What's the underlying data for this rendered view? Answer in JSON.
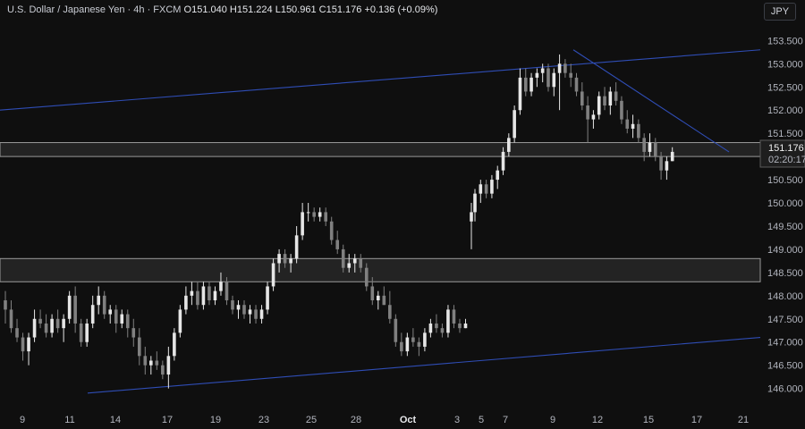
{
  "header": {
    "symbol": "U.S. Dollar / Japanese Yen",
    "interval": "4h",
    "source": "FXCM",
    "open": "O151.040",
    "high": "H151.224",
    "low": "L150.961",
    "close": "C151.176",
    "change": "+0.136 (+0.09%)"
  },
  "currency_button": "JPY",
  "price_tag": {
    "price": "151.176",
    "countdown": "02:20:17"
  },
  "colors": {
    "background": "#0f0f0f",
    "candle_up": "#e6e6e6",
    "candle_down": "#808080",
    "trendline": "#2f4db5",
    "zone_fill": "#232323",
    "zone_border": "#9a9a9a"
  },
  "chart_data": {
    "type": "candlestick",
    "y_ticks": [
      "153.500",
      "153.000",
      "152.500",
      "152.000",
      "151.500",
      "151.000",
      "150.500",
      "150.000",
      "149.500",
      "149.000",
      "148.500",
      "148.000",
      "147.500",
      "147.000",
      "146.500",
      "146.000"
    ],
    "ylim": [
      145.55,
      153.95
    ],
    "x_ticks": [
      "9",
      "11",
      "14",
      "17",
      "19",
      "23",
      "25",
      "28",
      "Oct",
      "3",
      "5",
      "7",
      "9",
      "12",
      "15",
      "17",
      "21"
    ],
    "x_tick_bold": [
      "Oct"
    ],
    "candles": [
      [
        147.9,
        148.1,
        147.4,
        147.7
      ],
      [
        147.7,
        147.9,
        147.2,
        147.3
      ],
      [
        147.3,
        147.5,
        147.0,
        147.1
      ],
      [
        147.1,
        147.2,
        146.6,
        146.8
      ],
      [
        146.8,
        147.2,
        146.5,
        147.1
      ],
      [
        147.1,
        147.7,
        147.0,
        147.5
      ],
      [
        147.5,
        147.7,
        147.3,
        147.4
      ],
      [
        147.4,
        147.6,
        147.1,
        147.2
      ],
      [
        147.2,
        147.6,
        147.1,
        147.5
      ],
      [
        147.5,
        147.7,
        147.2,
        147.3
      ],
      [
        147.3,
        147.6,
        147.0,
        147.5
      ],
      [
        147.5,
        148.1,
        147.4,
        148.0
      ],
      [
        148.0,
        148.2,
        147.2,
        147.4
      ],
      [
        147.4,
        147.5,
        146.9,
        147.0
      ],
      [
        147.0,
        147.5,
        146.9,
        147.4
      ],
      [
        147.4,
        148.0,
        147.3,
        147.8
      ],
      [
        147.8,
        148.2,
        147.6,
        148.0
      ],
      [
        148.0,
        148.1,
        147.5,
        147.6
      ],
      [
        147.6,
        147.8,
        147.4,
        147.7
      ],
      [
        147.7,
        147.8,
        147.2,
        147.4
      ],
      [
        147.4,
        147.7,
        147.3,
        147.6
      ],
      [
        147.6,
        147.7,
        147.1,
        147.3
      ],
      [
        147.3,
        147.5,
        146.9,
        147.1
      ],
      [
        147.1,
        147.3,
        146.5,
        146.7
      ],
      [
        146.7,
        146.9,
        146.3,
        146.5
      ],
      [
        146.5,
        146.7,
        146.3,
        146.6
      ],
      [
        146.6,
        146.8,
        146.4,
        146.5
      ],
      [
        146.5,
        146.6,
        146.2,
        146.3
      ],
      [
        146.3,
        146.9,
        146.0,
        146.7
      ],
      [
        146.7,
        147.3,
        146.6,
        147.2
      ],
      [
        147.2,
        147.8,
        147.1,
        147.7
      ],
      [
        147.7,
        148.2,
        147.6,
        148.0
      ],
      [
        148.0,
        148.3,
        147.8,
        148.1
      ],
      [
        148.1,
        148.3,
        147.7,
        147.8
      ],
      [
        147.8,
        148.3,
        147.7,
        148.2
      ],
      [
        148.2,
        148.3,
        147.8,
        147.9
      ],
      [
        147.9,
        148.2,
        147.8,
        148.1
      ],
      [
        148.1,
        148.5,
        148.0,
        148.3
      ],
      [
        148.3,
        148.4,
        147.8,
        147.9
      ],
      [
        147.9,
        148.0,
        147.6,
        147.7
      ],
      [
        147.7,
        147.9,
        147.5,
        147.8
      ],
      [
        147.8,
        147.9,
        147.5,
        147.6
      ],
      [
        147.6,
        147.8,
        147.4,
        147.7
      ],
      [
        147.7,
        147.8,
        147.4,
        147.5
      ],
      [
        147.5,
        147.8,
        147.4,
        147.7
      ],
      [
        147.7,
        148.3,
        147.6,
        148.2
      ],
      [
        148.2,
        148.8,
        148.1,
        148.7
      ],
      [
        148.7,
        149.0,
        148.5,
        148.9
      ],
      [
        148.9,
        149.0,
        148.6,
        148.7
      ],
      [
        148.7,
        148.9,
        148.5,
        148.8
      ],
      [
        148.8,
        149.5,
        148.7,
        149.3
      ],
      [
        149.3,
        150.0,
        149.2,
        149.8
      ],
      [
        149.8,
        150.0,
        149.6,
        149.8
      ],
      [
        149.8,
        149.9,
        149.6,
        149.7
      ],
      [
        149.7,
        149.9,
        149.6,
        149.8
      ],
      [
        149.8,
        149.9,
        149.5,
        149.6
      ],
      [
        149.6,
        149.7,
        149.1,
        149.2
      ],
      [
        149.2,
        149.4,
        148.9,
        149.0
      ],
      [
        149.0,
        149.1,
        148.5,
        148.6
      ],
      [
        148.6,
        148.9,
        148.5,
        148.7
      ],
      [
        148.7,
        148.9,
        148.5,
        148.8
      ],
      [
        148.8,
        148.9,
        148.5,
        148.6
      ],
      [
        148.6,
        148.7,
        148.1,
        148.2
      ],
      [
        148.2,
        148.4,
        147.8,
        147.9
      ],
      [
        147.9,
        148.1,
        147.7,
        148.0
      ],
      [
        148.0,
        148.2,
        147.8,
        147.8
      ],
      [
        147.8,
        148.1,
        147.4,
        147.5
      ],
      [
        147.5,
        147.6,
        146.9,
        147.0
      ],
      [
        147.0,
        147.2,
        146.7,
        146.8
      ],
      [
        146.8,
        147.2,
        146.7,
        147.1
      ],
      [
        147.1,
        147.3,
        146.9,
        147.0
      ],
      [
        147.0,
        147.1,
        146.7,
        146.9
      ],
      [
        146.9,
        147.3,
        146.8,
        147.2
      ],
      [
        147.2,
        147.5,
        147.1,
        147.4
      ],
      [
        147.4,
        147.6,
        147.2,
        147.3
      ],
      [
        147.3,
        147.4,
        147.1,
        147.2
      ],
      [
        147.2,
        147.8,
        147.1,
        147.7
      ],
      [
        147.7,
        147.8,
        147.3,
        147.4
      ],
      [
        147.4,
        147.5,
        147.2,
        147.3
      ],
      [
        147.3,
        147.5,
        147.3,
        147.4
      ],
      [
        149.6,
        150.0,
        149.0,
        149.8
      ],
      [
        149.8,
        150.3,
        149.6,
        150.2
      ],
      [
        150.2,
        150.5,
        150.0,
        150.4
      ],
      [
        150.4,
        150.5,
        150.1,
        150.2
      ],
      [
        150.2,
        150.6,
        150.1,
        150.5
      ],
      [
        150.5,
        150.8,
        150.3,
        150.7
      ],
      [
        150.7,
        151.2,
        150.6,
        151.1
      ],
      [
        151.1,
        151.5,
        151.0,
        151.4
      ],
      [
        151.4,
        152.1,
        151.3,
        152.0
      ],
      [
        152.0,
        152.9,
        151.9,
        152.7
      ],
      [
        152.7,
        152.9,
        152.3,
        152.4
      ],
      [
        152.4,
        152.8,
        152.3,
        152.7
      ],
      [
        152.7,
        152.9,
        152.5,
        152.8
      ],
      [
        152.8,
        153.0,
        152.6,
        152.9
      ],
      [
        152.9,
        153.0,
        152.4,
        152.5
      ],
      [
        152.5,
        152.9,
        152.3,
        152.8
      ],
      [
        152.8,
        153.2,
        152.0,
        153.0
      ],
      [
        153.0,
        153.1,
        152.7,
        152.8
      ],
      [
        152.8,
        153.0,
        152.5,
        152.7
      ],
      [
        152.7,
        152.8,
        152.3,
        152.4
      ],
      [
        152.4,
        152.6,
        152.0,
        152.1
      ],
      [
        152.1,
        152.3,
        151.3,
        151.8
      ],
      [
        151.8,
        152.0,
        151.6,
        151.9
      ],
      [
        151.9,
        152.4,
        151.8,
        152.3
      ],
      [
        152.3,
        152.5,
        152.0,
        152.1
      ],
      [
        152.1,
        152.5,
        151.9,
        152.4
      ],
      [
        152.4,
        152.6,
        152.1,
        152.2
      ],
      [
        152.2,
        152.3,
        151.7,
        151.8
      ],
      [
        151.8,
        152.0,
        151.5,
        151.6
      ],
      [
        151.6,
        151.9,
        151.4,
        151.7
      ],
      [
        151.7,
        151.8,
        151.3,
        151.4
      ],
      [
        151.4,
        151.5,
        150.9,
        151.1
      ],
      [
        151.1,
        151.5,
        151.0,
        151.3
      ],
      [
        151.3,
        151.4,
        150.9,
        151.0
      ],
      [
        151.0,
        151.1,
        150.5,
        150.7
      ],
      [
        150.7,
        151.0,
        150.5,
        150.9
      ],
      [
        150.9,
        151.2,
        150.9,
        151.1
      ]
    ],
    "annotations": [
      {
        "type": "trendline",
        "from": [
          "(left edge)",
          152.0
        ],
        "to": [
          "(right edge)",
          153.3
        ]
      },
      {
        "type": "trendline",
        "from": [
          "11",
          145.9
        ],
        "to": [
          "(right edge)",
          147.1
        ]
      },
      {
        "type": "trendline",
        "from": [
          "10",
          153.3
        ],
        "to": [
          "20",
          151.1
        ]
      },
      {
        "type": "zone",
        "top": 151.3,
        "bottom": 151.0
      },
      {
        "type": "zone",
        "top": 148.8,
        "bottom": 148.3
      }
    ]
  }
}
